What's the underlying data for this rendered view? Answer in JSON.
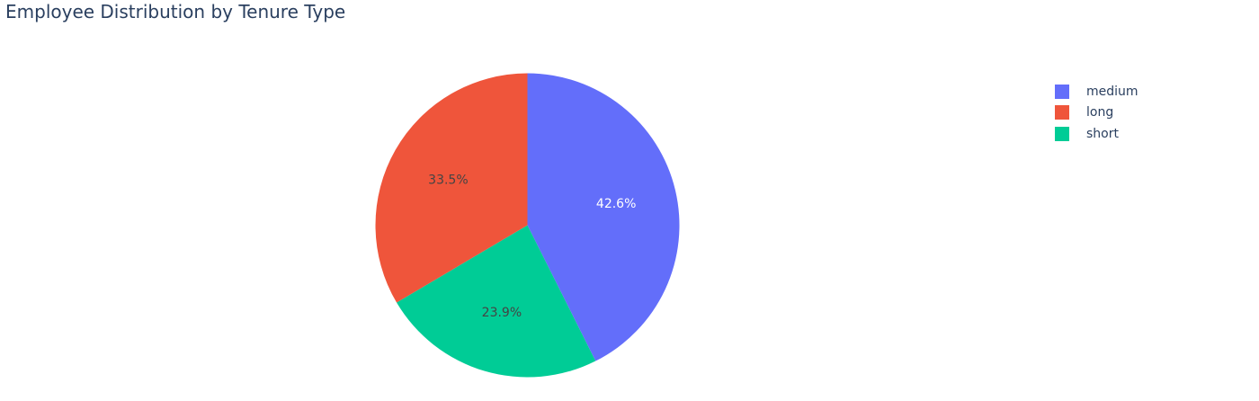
{
  "chart_data": {
    "type": "pie",
    "title": "Employee Distribution by Tenure Type",
    "slices": [
      {
        "label": "medium",
        "value": 42.6,
        "display": "42.6%",
        "color": "#636efa",
        "label_color": "#ffffff"
      },
      {
        "label": "short",
        "value": 23.9,
        "display": "23.9%",
        "color": "#00cc96",
        "label_color": "#444444"
      },
      {
        "label": "long",
        "value": 33.5,
        "display": "33.5%",
        "color": "#ef553b",
        "label_color": "#444444"
      }
    ],
    "legend": {
      "placement": "top-right",
      "items": [
        {
          "label": "medium",
          "color": "#636efa"
        },
        {
          "label": "long",
          "color": "#ef553b"
        },
        {
          "label": "short",
          "color": "#00cc96"
        }
      ]
    },
    "direction": "clockwise",
    "start_angle": "top"
  }
}
